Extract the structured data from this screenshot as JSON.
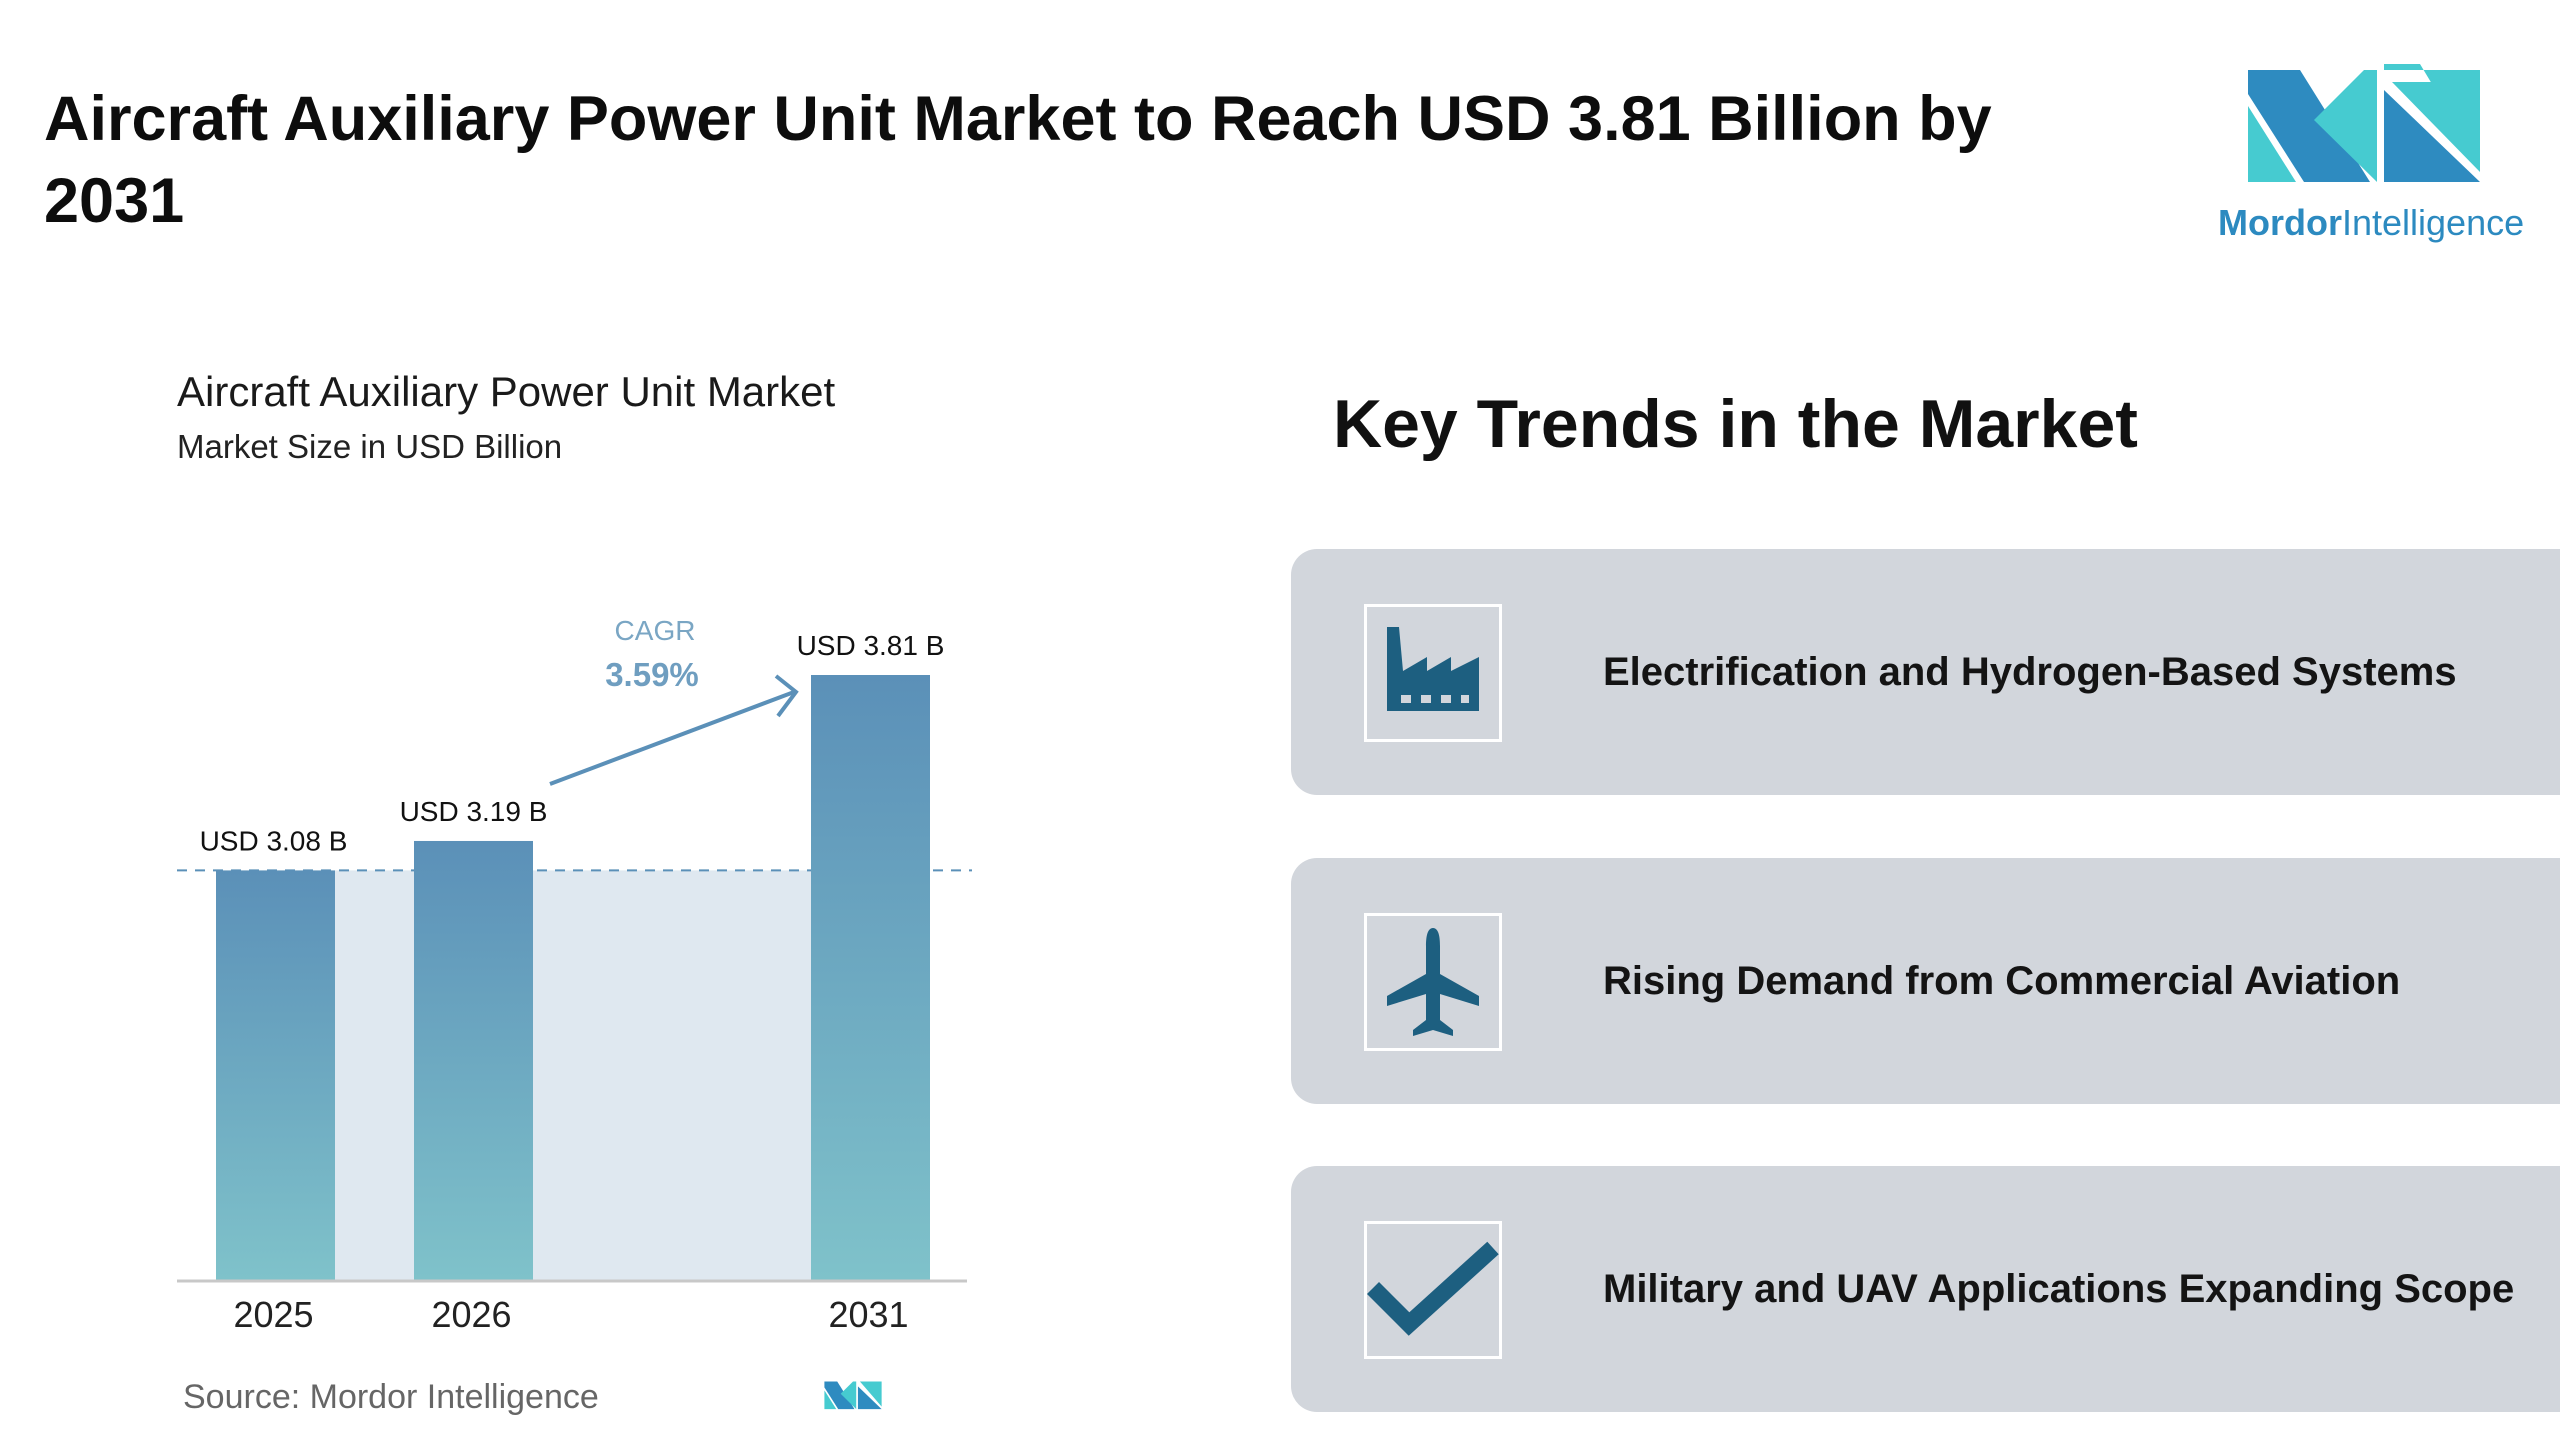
{
  "header": {
    "title": "Aircraft Auxiliary Power Unit Market to Reach USD 3.81 Billion by 2031",
    "logo_text_bold": "Mordor",
    "logo_text_light": "Intelligence"
  },
  "chart_data": {
    "type": "bar",
    "title": "Aircraft Auxiliary Power Unit Market",
    "subtitle": "Market Size in USD Billion",
    "categories": [
      "2025",
      "2026",
      "2031"
    ],
    "values": [
      3.08,
      3.19,
      3.81
    ],
    "data_labels": [
      "USD 3.08 B",
      "USD 3.19 B",
      "USD 3.81 B"
    ],
    "annotation": {
      "label": "CAGR",
      "value": "3.59%"
    },
    "reference_line": 3.08,
    "grid": false,
    "bar_color_top": "#5b90b8",
    "bar_color_bottom": "#7fc2ca",
    "source": "Source:  Mordor Intelligence"
  },
  "trends": {
    "title": "Key Trends in the Market",
    "items": [
      {
        "label": "Electrification and Hydrogen-Based Systems",
        "icon": "factory-icon"
      },
      {
        "label": "Rising Demand from Commercial Aviation",
        "icon": "airplane-icon"
      },
      {
        "label": "Military and UAV Applications Expanding Scope",
        "icon": "checkmark-icon"
      }
    ],
    "icon_color": "#1d5f80"
  }
}
